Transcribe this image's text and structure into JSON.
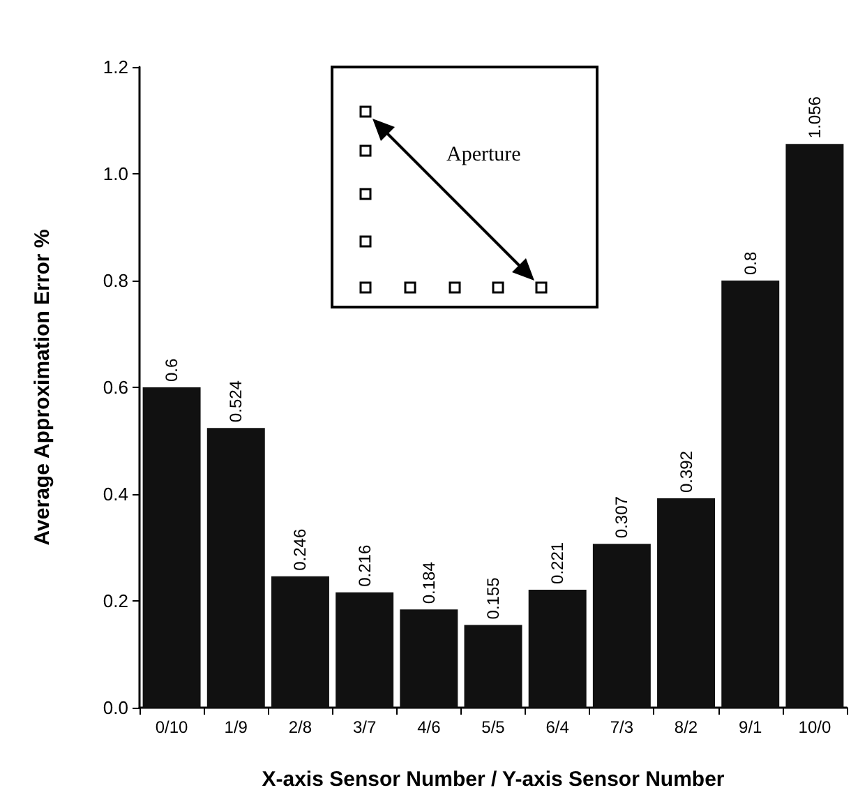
{
  "chart_data": {
    "type": "bar",
    "xlabel": "X-axis Sensor Number / Y-axis Sensor Number",
    "ylabel": "Average Approximation Error %",
    "categories": [
      "0/10",
      "1/9",
      "2/8",
      "3/7",
      "4/6",
      "5/5",
      "6/4",
      "7/3",
      "8/2",
      "9/1",
      "10/0"
    ],
    "values": [
      0.6,
      0.524,
      0.246,
      0.216,
      0.184,
      0.155,
      0.221,
      0.307,
      0.392,
      0.8,
      1.056
    ],
    "color": "#111111",
    "data_labels": true,
    "ylim": [
      0,
      1.2
    ],
    "yticks": [
      {
        "value": 0,
        "label": "0.0"
      },
      {
        "value": 0.2,
        "label": "0.2"
      },
      {
        "value": 0.4,
        "label": "0.4"
      },
      {
        "value": 0.6,
        "label": "0.6"
      },
      {
        "value": 0.8,
        "label": "0.8"
      },
      {
        "value": 1.0,
        "label": "1.0"
      },
      {
        "value": 1.2,
        "label": "1.2"
      }
    ],
    "annotations": [
      "Aperture"
    ]
  }
}
